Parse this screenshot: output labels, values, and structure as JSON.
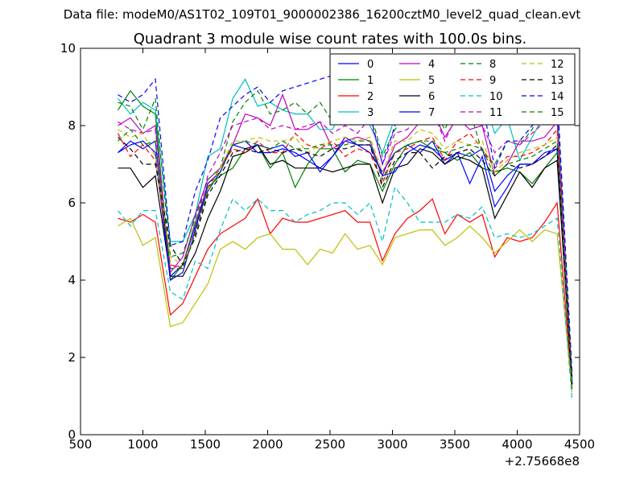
{
  "header": {
    "data_file": "Data file: modeM0/AS1T02_109T01_9000002386_16200cztM0_level2_quad_clean.evt"
  },
  "chart_data": {
    "type": "line",
    "title": "Quadrant 3 module wise count rates with 100.0s bins.",
    "xlabel": "",
    "ylabel": "",
    "xlim": [
      500,
      4500
    ],
    "ylim": [
      0,
      10
    ],
    "x_offset_label": "+2.75668e8",
    "xticks": [
      500,
      1000,
      1500,
      2000,
      2500,
      3000,
      3500,
      4000,
      4500
    ],
    "yticks": [
      0,
      2,
      4,
      6,
      8,
      10
    ],
    "grid": false,
    "legend_position": "top-right",
    "x": [
      800,
      900,
      1000,
      1100,
      1220,
      1320,
      1420,
      1520,
      1620,
      1720,
      1820,
      1920,
      2020,
      2120,
      2220,
      2320,
      2420,
      2520,
      2620,
      2720,
      2820,
      2920,
      3020,
      3120,
      3220,
      3320,
      3420,
      3520,
      3620,
      3720,
      3820,
      3920,
      4020,
      4120,
      4220,
      4320,
      4440
    ],
    "series": [
      {
        "name": "0",
        "color": "#0000ff",
        "dash": "solid",
        "values": [
          7.3,
          7.6,
          7.4,
          7.6,
          4.1,
          4.4,
          5.4,
          6.3,
          6.8,
          7.5,
          7.6,
          7.3,
          7.3,
          7.4,
          7.3,
          7.1,
          6.9,
          7.2,
          7.6,
          7.5,
          7.3,
          6.8,
          7.3,
          7.5,
          7.3,
          7.6,
          7.0,
          7.3,
          7.2,
          7.4,
          6.3,
          6.7,
          7.0,
          7.0,
          7.2,
          7.4,
          1.3
        ]
      },
      {
        "name": "1",
        "color": "#008000",
        "dash": "solid",
        "values": [
          8.4,
          8.9,
          8.5,
          8.3,
          4.0,
          4.4,
          5.5,
          6.4,
          6.7,
          6.9,
          7.4,
          7.5,
          6.9,
          7.3,
          6.4,
          7.0,
          7.4,
          7.4,
          6.8,
          7.1,
          7.0,
          6.3,
          7.0,
          7.5,
          7.6,
          7.4,
          7.3,
          7.1,
          7.3,
          6.9,
          6.8,
          6.9,
          6.8,
          6.5,
          6.9,
          7.3,
          1.2
        ]
      },
      {
        "name": "2",
        "color": "#ff0000",
        "dash": "solid",
        "values": [
          5.6,
          5.5,
          5.7,
          5.5,
          3.1,
          3.4,
          4.1,
          4.8,
          5.2,
          5.4,
          5.6,
          6.1,
          5.2,
          5.6,
          5.5,
          5.5,
          5.6,
          5.7,
          5.8,
          5.5,
          5.5,
          4.5,
          5.2,
          5.6,
          5.8,
          6.1,
          5.2,
          5.7,
          5.5,
          5.7,
          4.6,
          5.1,
          5.0,
          5.1,
          5.5,
          6.0,
          1.2
        ]
      },
      {
        "name": "3",
        "color": "#00bfbf",
        "dash": "solid",
        "values": [
          8.7,
          8.3,
          8.6,
          8.4,
          5.0,
          5.0,
          5.7,
          7.2,
          7.4,
          8.7,
          9.2,
          8.5,
          8.6,
          8.4,
          8.3,
          8.3,
          7.9,
          7.9,
          8.6,
          8.7,
          8.0,
          7.3,
          8.2,
          8.6,
          9.2,
          9.0,
          8.2,
          8.6,
          8.5,
          8.8,
          7.8,
          8.2,
          7.1,
          7.7,
          8.3,
          8.6,
          1.4
        ]
      },
      {
        "name": "4",
        "color": "#bf00bf",
        "dash": "solid",
        "values": [
          8.0,
          8.2,
          7.8,
          8.0,
          4.2,
          4.6,
          5.7,
          6.6,
          6.9,
          7.5,
          8.3,
          8.2,
          8.0,
          8.8,
          7.9,
          7.9,
          8.1,
          7.4,
          7.6,
          7.7,
          7.6,
          6.7,
          7.5,
          7.7,
          8.1,
          8.4,
          7.7,
          8.2,
          7.9,
          8.0,
          6.7,
          7.0,
          7.6,
          7.6,
          7.7,
          8.1,
          1.4
        ]
      },
      {
        "name": "5",
        "color": "#bfbf00",
        "dash": "solid",
        "values": [
          5.4,
          5.6,
          4.9,
          5.1,
          2.8,
          2.9,
          3.4,
          3.9,
          4.8,
          5.0,
          4.8,
          5.1,
          5.2,
          4.8,
          4.8,
          4.4,
          4.8,
          4.7,
          5.2,
          4.8,
          4.9,
          4.4,
          5.1,
          5.2,
          5.3,
          5.3,
          4.9,
          5.1,
          5.4,
          5.1,
          4.7,
          5.0,
          5.3,
          5.0,
          5.3,
          5.2,
          1.1
        ]
      },
      {
        "name": "6",
        "color": "#000000",
        "dash": "solid",
        "values": [
          6.9,
          6.9,
          6.4,
          6.7,
          4.1,
          4.1,
          4.7,
          5.6,
          6.3,
          7.2,
          7.3,
          7.5,
          7.0,
          7.1,
          6.9,
          6.9,
          6.9,
          6.8,
          6.9,
          7.0,
          7.0,
          6.0,
          6.9,
          7.0,
          7.4,
          7.3,
          7.0,
          7.2,
          7.1,
          6.9,
          5.6,
          6.2,
          6.8,
          6.4,
          6.9,
          7.1,
          1.3
        ]
      },
      {
        "name": "7",
        "color": "#0000ff",
        "dash": "solid",
        "values": [
          7.3,
          7.5,
          7.6,
          7.3,
          4.0,
          4.2,
          5.3,
          6.5,
          6.8,
          7.5,
          7.4,
          7.5,
          7.4,
          7.5,
          7.2,
          7.3,
          6.8,
          7.2,
          7.7,
          7.5,
          7.5,
          6.7,
          6.8,
          7.3,
          7.5,
          7.4,
          7.1,
          7.3,
          6.5,
          7.2,
          5.9,
          6.4,
          7.0,
          7.0,
          7.3,
          7.4,
          1.3
        ]
      },
      {
        "name": "8",
        "color": "#008000",
        "dash": "dashed",
        "values": [
          8.6,
          8.5,
          7.9,
          8.7,
          4.6,
          4.7,
          5.6,
          6.6,
          6.9,
          8.1,
          8.6,
          8.9,
          8.3,
          8.4,
          8.6,
          8.3,
          8.6,
          8.1,
          8.7,
          8.5,
          8.4,
          7.2,
          7.9,
          8.3,
          8.6,
          8.5,
          7.9,
          8.6,
          8.4,
          7.3,
          7.0,
          7.6,
          7.5,
          7.9,
          8.6,
          8.7,
          1.6
        ]
      },
      {
        "name": "9",
        "color": "#ff0000",
        "dash": "dashed",
        "values": [
          7.8,
          7.2,
          7.5,
          7.1,
          4.4,
          4.3,
          5.2,
          6.4,
          6.9,
          7.4,
          7.3,
          7.6,
          7.3,
          7.3,
          7.8,
          7.5,
          7.4,
          7.6,
          7.2,
          7.4,
          7.3,
          6.5,
          7.3,
          7.4,
          7.6,
          7.7,
          7.1,
          7.6,
          7.8,
          7.4,
          6.9,
          7.2,
          7.2,
          7.3,
          7.5,
          7.9,
          1.4
        ]
      },
      {
        "name": "10",
        "color": "#00bfbf",
        "dash": "dashed",
        "values": [
          5.8,
          5.4,
          5.8,
          5.8,
          3.7,
          3.5,
          4.5,
          4.3,
          5.3,
          6.1,
          5.8,
          6.1,
          5.8,
          5.8,
          5.5,
          5.7,
          5.8,
          6.0,
          6.0,
          5.7,
          6.0,
          5.0,
          6.4,
          6.0,
          5.5,
          5.5,
          5.5,
          5.7,
          5.6,
          5.9,
          5.1,
          5.2,
          5.1,
          5.2,
          5.4,
          5.6,
          0.9
        ]
      },
      {
        "name": "11",
        "color": "#bf00bf",
        "dash": "dashed",
        "values": [
          8.1,
          7.9,
          7.8,
          7.9,
          4.3,
          4.4,
          5.4,
          6.7,
          7.3,
          8.0,
          8.1,
          8.2,
          7.9,
          8.0,
          7.9,
          8.0,
          8.1,
          7.8,
          8.0,
          7.8,
          8.2,
          7.0,
          7.8,
          7.9,
          8.3,
          8.4,
          7.6,
          8.3,
          8.2,
          8.0,
          7.3,
          7.6,
          7.5,
          7.8,
          8.1,
          8.2,
          1.5
        ]
      },
      {
        "name": "12",
        "color": "#bfbf00",
        "dash": "dashed",
        "values": [
          7.9,
          7.7,
          7.8,
          7.2,
          4.6,
          4.4,
          5.2,
          6.3,
          6.9,
          7.6,
          7.6,
          7.7,
          7.6,
          7.6,
          7.7,
          7.3,
          7.5,
          7.6,
          7.7,
          7.6,
          7.7,
          6.8,
          7.6,
          7.6,
          7.9,
          7.8,
          7.4,
          7.6,
          7.5,
          7.6,
          6.8,
          7.1,
          7.3,
          7.4,
          7.5,
          7.7,
          1.3
        ]
      },
      {
        "name": "13",
        "color": "#000000",
        "dash": "dashed",
        "values": [
          7.7,
          7.4,
          7.0,
          7.0,
          4.9,
          4.4,
          5.1,
          6.2,
          6.7,
          7.3,
          7.4,
          7.3,
          7.4,
          7.3,
          7.4,
          7.3,
          7.2,
          7.4,
          7.4,
          7.5,
          7.5,
          6.4,
          7.1,
          7.3,
          7.3,
          6.9,
          7.2,
          7.3,
          7.4,
          7.1,
          6.7,
          7.0,
          6.9,
          7.0,
          7.2,
          7.5,
          1.2
        ]
      },
      {
        "name": "14",
        "color": "#0000ff",
        "dash": "dashed",
        "values": [
          8.8,
          8.6,
          8.8,
          9.2,
          4.9,
          5.0,
          6.3,
          7.1,
          8.2,
          8.5,
          8.8,
          9.0,
          8.6,
          8.9,
          9.0,
          9.1,
          9.2,
          9.3,
          9.2,
          8.8,
          8.3,
          7.0,
          8.0,
          8.7,
          9.1,
          8.8,
          8.1,
          8.7,
          8.9,
          8.6,
          6.9,
          7.6,
          7.6,
          8.0,
          8.3,
          8.9,
          1.5
        ]
      },
      {
        "name": "15",
        "color": "#008000",
        "dash": "dashed",
        "values": [
          7.6,
          7.9,
          7.5,
          7.6,
          4.3,
          4.3,
          5.2,
          6.3,
          6.8,
          7.5,
          7.6,
          7.5,
          7.4,
          7.6,
          7.4,
          7.4,
          7.5,
          7.5,
          7.5,
          7.6,
          7.6,
          6.6,
          7.3,
          7.5,
          7.6,
          7.6,
          7.3,
          7.4,
          7.5,
          7.4,
          6.7,
          7.0,
          7.1,
          7.2,
          7.4,
          7.6,
          1.3
        ]
      }
    ]
  }
}
